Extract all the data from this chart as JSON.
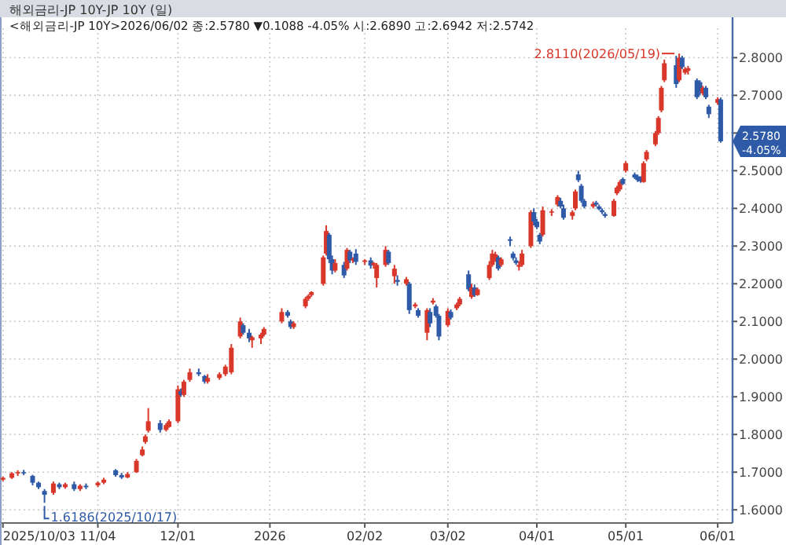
{
  "chart_data": {
    "type": "candlestick",
    "title": "해외금리-JP      10Y-JP 10Y (일)",
    "subtitle": "<해외금리-JP 10Y>2026/06/02 종:2.5780 ▼0.1088 -4.05% 시:2.6890 고:2.6942 저:2.5742",
    "x": [
      "2025-10-03",
      "2025-10-06",
      "2025-10-08",
      "2025-10-10",
      "2025-10-13",
      "2025-10-15",
      "2025-10-17",
      "2025-10-20",
      "2025-10-22",
      "2025-10-24",
      "2025-10-27",
      "2025-10-29",
      "2025-10-31",
      "2025-11-04",
      "2025-11-06",
      "2025-11-10",
      "2025-11-12",
      "2025-11-14",
      "2025-11-17",
      "2025-11-19",
      "2025-11-20",
      "2025-11-21",
      "2025-11-25",
      "2025-11-27",
      "2025-11-28",
      "2025-12-01",
      "2025-12-02",
      "2025-12-03",
      "2025-12-05",
      "2025-12-08",
      "2025-12-10",
      "2025-12-11",
      "2025-12-15",
      "2025-12-17",
      "2025-12-19",
      "2025-12-22",
      "2025-12-23",
      "2025-12-25",
      "2025-12-26",
      "2025-12-29",
      "2025-12-30",
      "2026-01-05",
      "2026-01-07",
      "2026-01-08",
      "2026-01-09",
      "2026-01-13",
      "2026-01-14",
      "2026-01-15",
      "2026-01-19",
      "2026-01-20",
      "2026-01-21",
      "2026-01-22",
      "2026-01-23",
      "2026-01-26",
      "2026-01-27",
      "2026-01-28",
      "2026-01-29",
      "2026-01-30",
      "2026-02-02",
      "2026-02-04",
      "2026-02-05",
      "2026-02-06",
      "2026-02-09",
      "2026-02-10",
      "2026-02-12",
      "2026-02-13",
      "2026-02-16",
      "2026-02-17",
      "2026-02-19",
      "2026-02-20",
      "2026-02-23",
      "2026-02-24",
      "2026-02-25",
      "2026-02-26",
      "2026-02-27",
      "2026-03-02",
      "2026-03-03",
      "2026-03-05",
      "2026-03-06",
      "2026-03-09",
      "2026-03-10",
      "2026-03-11",
      "2026-03-12",
      "2026-03-16",
      "2026-03-17",
      "2026-03-18",
      "2026-03-19",
      "2026-03-20",
      "2026-03-23",
      "2026-03-24",
      "2026-03-25",
      "2026-03-26",
      "2026-03-27",
      "2026-03-30",
      "2026-03-31",
      "2026-04-01",
      "2026-04-02",
      "2026-04-03",
      "2026-04-06",
      "2026-04-08",
      "2026-04-09",
      "2026-04-10",
      "2026-04-13",
      "2026-04-14",
      "2026-04-15",
      "2026-04-16",
      "2026-04-17",
      "2026-04-20",
      "2026-04-21",
      "2026-04-22",
      "2026-04-23",
      "2026-04-24",
      "2026-04-27",
      "2026-04-28",
      "2026-04-29",
      "2026-04-30",
      "2026-05-01",
      "2026-05-04",
      "2026-05-05",
      "2026-05-06",
      "2026-05-07",
      "2026-05-08",
      "2026-05-11",
      "2026-05-12",
      "2026-05-13",
      "2026-05-14",
      "2026-05-18",
      "2026-05-19",
      "2026-05-20",
      "2026-05-21",
      "2026-05-22",
      "2026-05-25",
      "2026-05-26",
      "2026-05-27",
      "2026-05-28",
      "2026-05-29",
      "2026-06-01",
      "2026-06-02"
    ],
    "ohlc": [
      [
        1.68,
        1.688,
        1.676,
        1.685
      ],
      [
        1.685,
        1.7,
        1.682,
        1.697
      ],
      [
        1.697,
        1.705,
        1.69,
        1.7
      ],
      [
        1.7,
        1.706,
        1.692,
        1.698
      ],
      [
        1.69,
        1.693,
        1.665,
        1.672
      ],
      [
        1.672,
        1.675,
        1.655,
        1.66
      ],
      [
        1.65,
        1.655,
        1.6186,
        1.64
      ],
      [
        1.645,
        1.675,
        1.64,
        1.67
      ],
      [
        1.668,
        1.672,
        1.655,
        1.66
      ],
      [
        1.66,
        1.672,
        1.656,
        1.668
      ],
      [
        1.668,
        1.675,
        1.65,
        1.655
      ],
      [
        1.655,
        1.668,
        1.65,
        1.664
      ],
      [
        1.664,
        1.67,
        1.655,
        1.66
      ],
      [
        1.665,
        1.675,
        1.66,
        1.672
      ],
      [
        1.672,
        1.685,
        1.668,
        1.68
      ],
      [
        1.705,
        1.708,
        1.688,
        1.692
      ],
      [
        1.692,
        1.698,
        1.682,
        1.686
      ],
      [
        1.686,
        1.7,
        1.684,
        1.695
      ],
      [
        1.7,
        1.735,
        1.698,
        1.73
      ],
      [
        1.745,
        1.768,
        1.742,
        1.76
      ],
      [
        1.78,
        1.8,
        1.775,
        1.795
      ],
      [
        1.81,
        1.87,
        1.805,
        1.835
      ],
      [
        1.83,
        1.838,
        1.805,
        1.812
      ],
      [
        1.812,
        1.83,
        1.808,
        1.825
      ],
      [
        1.82,
        1.84,
        1.818,
        1.835
      ],
      [
        1.835,
        1.93,
        1.83,
        1.92
      ],
      [
        1.915,
        1.922,
        1.9,
        1.905
      ],
      [
        1.905,
        1.945,
        1.9,
        1.94
      ],
      [
        1.945,
        1.975,
        1.94,
        1.965
      ],
      [
        1.965,
        1.975,
        1.955,
        1.96
      ],
      [
        1.955,
        1.958,
        1.935,
        1.94
      ],
      [
        1.94,
        1.96,
        1.935,
        1.95
      ],
      [
        1.95,
        1.965,
        1.945,
        1.96
      ],
      [
        1.96,
        1.985,
        1.955,
        1.98
      ],
      [
        1.965,
        2.04,
        1.96,
        2.03
      ],
      [
        2.06,
        2.11,
        2.055,
        2.1
      ],
      [
        2.09,
        2.095,
        2.065,
        2.07
      ],
      [
        2.07,
        2.08,
        2.045,
        2.055
      ],
      [
        2.05,
        2.062,
        2.03,
        2.058
      ],
      [
        2.055,
        2.07,
        2.04,
        2.065
      ],
      [
        2.065,
        2.085,
        2.06,
        2.08
      ],
      [
        2.1,
        2.135,
        2.095,
        2.125
      ],
      [
        2.125,
        2.13,
        2.11,
        2.115
      ],
      [
        2.1,
        2.105,
        2.08,
        2.085
      ],
      [
        2.085,
        2.1,
        2.08,
        2.095
      ],
      [
        2.14,
        2.165,
        2.135,
        2.16
      ],
      [
        2.16,
        2.172,
        2.155,
        2.168
      ],
      [
        2.17,
        2.18,
        2.165,
        2.178
      ],
      [
        2.2,
        2.275,
        2.195,
        2.27
      ],
      [
        2.28,
        2.355,
        2.275,
        2.34
      ],
      [
        2.33,
        2.335,
        2.255,
        2.265
      ],
      [
        2.265,
        2.275,
        2.225,
        2.235
      ],
      [
        2.235,
        2.265,
        2.23,
        2.255
      ],
      [
        2.25,
        2.258,
        2.215,
        2.222
      ],
      [
        2.24,
        2.295,
        2.235,
        2.29
      ],
      [
        2.285,
        2.29,
        2.255,
        2.262
      ],
      [
        2.262,
        2.27,
        2.255,
        2.266
      ],
      [
        2.28,
        2.292,
        2.25,
        2.258
      ],
      [
        2.258,
        2.265,
        2.25,
        2.262
      ],
      [
        2.262,
        2.27,
        2.24,
        2.248
      ],
      [
        2.25,
        2.258,
        2.24,
        2.255
      ],
      [
        2.215,
        2.255,
        2.19,
        2.25
      ],
      [
        2.25,
        2.3,
        2.245,
        2.29
      ],
      [
        2.285,
        2.29,
        2.25,
        2.255
      ],
      [
        2.22,
        2.25,
        2.2,
        2.24
      ],
      [
        2.21,
        2.222,
        2.195,
        2.205
      ],
      [
        2.2,
        2.218,
        2.195,
        2.212
      ],
      [
        2.2,
        2.205,
        2.12,
        2.13
      ],
      [
        2.14,
        2.15,
        2.135,
        2.145
      ],
      [
        2.13,
        2.135,
        2.11,
        2.115
      ],
      [
        2.07,
        2.135,
        2.05,
        2.13
      ],
      [
        2.125,
        2.135,
        2.085,
        2.095
      ],
      [
        2.15,
        2.162,
        2.145,
        2.155
      ],
      [
        2.14,
        2.145,
        2.11,
        2.115
      ],
      [
        2.115,
        2.12,
        2.05,
        2.06
      ],
      [
        2.09,
        2.135,
        2.085,
        2.128
      ],
      [
        2.125,
        2.132,
        2.105,
        2.11
      ],
      [
        2.135,
        2.15,
        2.13,
        2.145
      ],
      [
        2.145,
        2.165,
        2.14,
        2.16
      ],
      [
        2.225,
        2.235,
        2.18,
        2.185
      ],
      [
        2.165,
        2.2,
        2.16,
        2.19
      ],
      [
        2.19,
        2.198,
        2.165,
        2.17
      ],
      [
        2.17,
        2.19,
        2.168,
        2.185
      ],
      [
        2.215,
        2.26,
        2.21,
        2.25
      ],
      [
        2.25,
        2.29,
        2.245,
        2.28
      ],
      [
        2.262,
        2.285,
        2.258,
        2.278
      ],
      [
        2.27,
        2.275,
        2.235,
        2.24
      ],
      [
        2.25,
        2.27,
        2.245,
        2.265
      ],
      [
        2.318,
        2.325,
        2.3,
        2.314
      ],
      [
        2.28,
        2.285,
        2.262,
        2.268
      ],
      [
        2.262,
        2.27,
        2.25,
        2.255
      ],
      [
        2.245,
        2.26,
        2.235,
        2.25
      ],
      [
        2.25,
        2.29,
        2.245,
        2.28
      ],
      [
        2.3,
        2.395,
        2.295,
        2.39
      ],
      [
        2.39,
        2.4,
        2.355,
        2.365
      ],
      [
        2.365,
        2.372,
        2.345,
        2.35
      ],
      [
        2.33,
        2.335,
        2.305,
        2.312
      ],
      [
        2.33,
        2.405,
        2.325,
        2.395
      ],
      [
        2.39,
        2.398,
        2.38,
        2.392
      ],
      [
        2.41,
        2.435,
        2.405,
        2.43
      ],
      [
        2.42,
        2.428,
        2.4,
        2.405
      ],
      [
        2.4,
        2.41,
        2.37,
        2.375
      ],
      [
        2.38,
        2.395,
        2.37,
        2.39
      ],
      [
        2.4,
        2.45,
        2.395,
        2.445
      ],
      [
        2.49,
        2.5,
        2.47,
        2.475
      ],
      [
        2.46,
        2.465,
        2.415,
        2.42
      ],
      [
        2.42,
        2.425,
        2.4,
        2.405
      ],
      [
        2.405,
        2.418,
        2.4,
        2.412
      ],
      [
        2.415,
        2.42,
        2.405,
        2.41
      ],
      [
        2.405,
        2.41,
        2.395,
        2.398
      ],
      [
        2.395,
        2.4,
        2.385,
        2.39
      ],
      [
        2.385,
        2.39,
        2.375,
        2.38
      ],
      [
        2.38,
        2.425,
        2.378,
        2.42
      ],
      [
        2.44,
        2.46,
        2.435,
        2.455
      ],
      [
        2.45,
        2.475,
        2.445,
        2.47
      ],
      [
        2.478,
        2.482,
        2.462,
        2.465
      ],
      [
        2.5,
        2.525,
        2.495,
        2.52
      ],
      [
        2.49,
        2.495,
        2.478,
        2.482
      ],
      [
        2.485,
        2.49,
        2.47,
        2.475
      ],
      [
        2.478,
        2.485,
        2.468,
        2.472
      ],
      [
        2.47,
        2.525,
        2.468,
        2.52
      ],
      [
        2.53,
        2.555,
        2.525,
        2.55
      ],
      [
        2.57,
        2.605,
        2.565,
        2.6
      ],
      [
        2.6,
        2.645,
        2.595,
        2.64
      ],
      [
        2.66,
        2.725,
        2.655,
        2.72
      ],
      [
        2.74,
        2.795,
        2.735,
        2.785
      ],
      [
        2.78,
        2.805,
        2.72,
        2.73
      ],
      [
        2.74,
        2.811,
        2.735,
        2.8
      ],
      [
        2.8,
        2.805,
        2.77,
        2.775
      ],
      [
        2.76,
        2.775,
        2.755,
        2.77
      ],
      [
        2.765,
        2.778,
        2.755,
        2.772
      ],
      [
        2.74,
        2.745,
        2.69,
        2.695
      ],
      [
        2.735,
        2.74,
        2.7,
        2.71
      ],
      [
        2.705,
        2.725,
        2.7,
        2.72
      ],
      [
        2.72,
        2.725,
        2.69,
        2.695
      ],
      [
        2.67,
        2.675,
        2.64,
        2.65
      ],
      [
        2.68,
        2.695,
        2.675,
        2.69
      ],
      [
        2.689,
        2.6942,
        2.5742,
        2.578
      ]
    ],
    "colors": [
      "#d8372a",
      "#d8372a",
      "#d8372a",
      "#2e5aa8",
      "#2e5aa8",
      "#2e5aa8",
      "#2e5aa8",
      "#d8372a",
      "#2e5aa8",
      "#d8372a",
      "#2e5aa8",
      "#d8372a",
      "#2e5aa8",
      "#d8372a",
      "#d8372a",
      "#2e5aa8",
      "#2e5aa8",
      "#d8372a",
      "#d8372a",
      "#d8372a",
      "#d8372a",
      "#d8372a",
      "#2e5aa8",
      "#d8372a",
      "#d8372a",
      "#d8372a",
      "#2e5aa8",
      "#d8372a",
      "#d8372a",
      "#2e5aa8",
      "#2e5aa8",
      "#d8372a",
      "#d8372a",
      "#d8372a",
      "#d8372a",
      "#d8372a",
      "#2e5aa8",
      "#2e5aa8",
      "#d8372a",
      "#d8372a",
      "#d8372a",
      "#d8372a",
      "#2e5aa8",
      "#2e5aa8",
      "#d8372a",
      "#d8372a",
      "#d8372a",
      "#d8372a",
      "#d8372a",
      "#d8372a",
      "#2e5aa8",
      "#2e5aa8",
      "#d8372a",
      "#2e5aa8",
      "#d8372a",
      "#2e5aa8",
      "#d8372a",
      "#2e5aa8",
      "#d8372a",
      "#2e5aa8",
      "#d8372a",
      "#d8372a",
      "#d8372a",
      "#2e5aa8",
      "#d8372a",
      "#2e5aa8",
      "#d8372a",
      "#2e5aa8",
      "#d8372a",
      "#2e5aa8",
      "#d8372a",
      "#2e5aa8",
      "#d8372a",
      "#2e5aa8",
      "#2e5aa8",
      "#d8372a",
      "#2e5aa8",
      "#d8372a",
      "#d8372a",
      "#2e5aa8",
      "#d8372a",
      "#2e5aa8",
      "#d8372a",
      "#d8372a",
      "#d8372a",
      "#d8372a",
      "#2e5aa8",
      "#d8372a",
      "#2e5aa8",
      "#2e5aa8",
      "#2e5aa8",
      "#d8372a",
      "#d8372a",
      "#d8372a",
      "#2e5aa8",
      "#2e5aa8",
      "#2e5aa8",
      "#d8372a",
      "#d8372a",
      "#d8372a",
      "#2e5aa8",
      "#2e5aa8",
      "#d8372a",
      "#d8372a",
      "#2e5aa8",
      "#2e5aa8",
      "#2e5aa8",
      "#d8372a",
      "#2e5aa8",
      "#2e5aa8",
      "#2e5aa8",
      "#2e5aa8",
      "#d8372a",
      "#d8372a",
      "#d8372a",
      "#2e5aa8",
      "#d8372a",
      "#2e5aa8",
      "#2e5aa8",
      "#2e5aa8",
      "#d8372a",
      "#d8372a",
      "#d8372a",
      "#d8372a",
      "#d8372a",
      "#d8372a",
      "#2e5aa8",
      "#d8372a",
      "#2e5aa8",
      "#d8372a",
      "#d8372a",
      "#2e5aa8",
      "#2e5aa8",
      "#d8372a",
      "#2e5aa8",
      "#2e5aa8",
      "#d8372a",
      "#2e5aa8"
    ],
    "xlim": [
      "2025-10-02",
      "2026-06-06"
    ],
    "xticks": [
      {
        "value": "2025-10-03",
        "label": "2025/10/03"
      },
      {
        "value": "2025-11-04",
        "label": "11/04"
      },
      {
        "value": "2025-12-01",
        "label": "12/01"
      },
      {
        "value": "2026-01-01",
        "label": "2026"
      },
      {
        "value": "2026-02-02",
        "label": "02/02"
      },
      {
        "value": "2026-03-02",
        "label": "03/02"
      },
      {
        "value": "2026-04-01",
        "label": "04/01"
      },
      {
        "value": "2026-05-01",
        "label": "05/01"
      },
      {
        "value": "2026-06-01",
        "label": "06/01"
      }
    ],
    "ylim": [
      1.565,
      2.878
    ],
    "yticks": [
      {
        "value": 1.6,
        "label": "1.6000"
      },
      {
        "value": 1.7,
        "label": "1.7000"
      },
      {
        "value": 1.8,
        "label": "1.8000"
      },
      {
        "value": 1.9,
        "label": "1.9000"
      },
      {
        "value": 2.0,
        "label": "2.0000"
      },
      {
        "value": 2.1,
        "label": "2.1000"
      },
      {
        "value": 2.2,
        "label": "2.2000"
      },
      {
        "value": 2.3,
        "label": "2.3000"
      },
      {
        "value": 2.4,
        "label": "2.4000"
      },
      {
        "value": 2.5,
        "label": "2.5000"
      },
      {
        "value": 2.6,
        "label": null
      },
      {
        "value": 2.7,
        "label": "2.7000"
      },
      {
        "value": 2.8,
        "label": "2.8000"
      }
    ],
    "annotations": [
      {
        "text": "1.6186(2025/10/17)",
        "x": "2025-10-17",
        "y": 1.6186
      },
      {
        "text": "2.8110(2026/05/19)",
        "x": "2026-05-19",
        "y": 2.811
      },
      {
        "text": "2.5780 -4.05%",
        "x": "2026-06-02",
        "y": 2.578
      }
    ],
    "grid": true
  }
}
